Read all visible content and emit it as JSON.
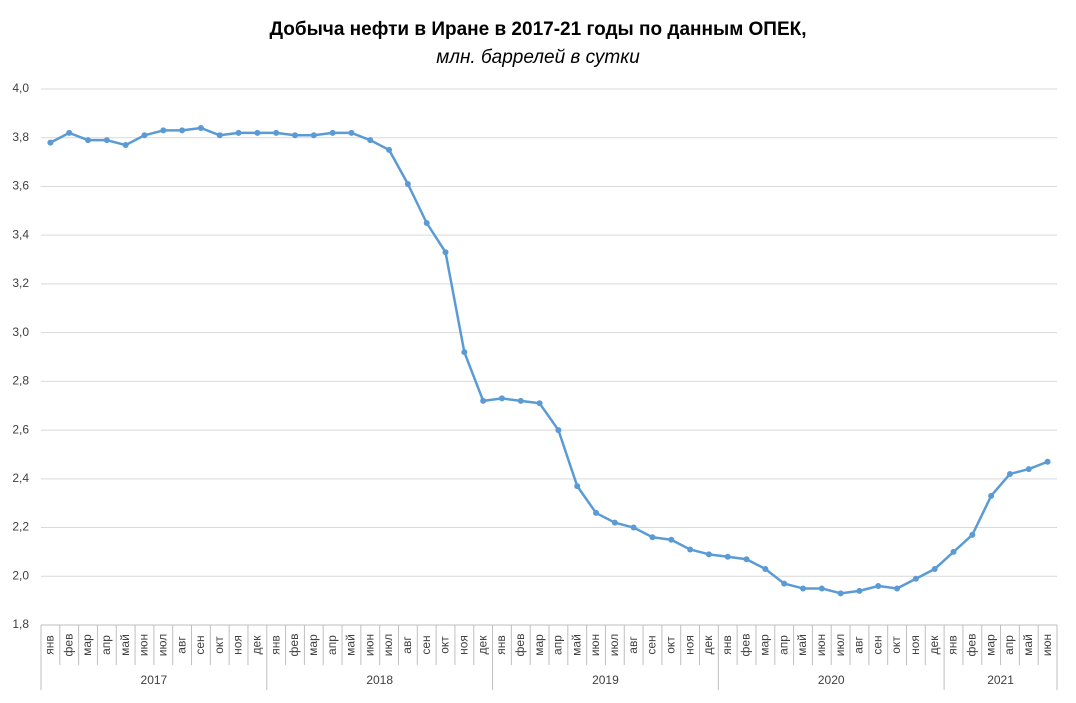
{
  "chart_data": {
    "type": "line",
    "title": "Добыча нефти в Иране в 2017-21 годы по данным ОПЕК,",
    "subtitle": "млн. баррелей в сутки",
    "categories": [
      "янв",
      "фев",
      "мар",
      "апр",
      "май",
      "июн",
      "июл",
      "авг",
      "сен",
      "окт",
      "ноя",
      "дек",
      "янв",
      "фев",
      "мар",
      "апр",
      "май",
      "июн",
      "июл",
      "авг",
      "сен",
      "окт",
      "ноя",
      "дек",
      "янв",
      "фев",
      "мар",
      "апр",
      "май",
      "июн",
      "июл",
      "авг",
      "сен",
      "окт",
      "ноя",
      "дек",
      "янв",
      "фев",
      "мар",
      "апр",
      "май",
      "июн",
      "июл",
      "авг",
      "сен",
      "окт",
      "ноя",
      "дек",
      "янв",
      "фев",
      "мар",
      "апр",
      "май",
      "июн"
    ],
    "x_groups": [
      {
        "label": "2017",
        "size": 12
      },
      {
        "label": "2018",
        "size": 12
      },
      {
        "label": "2019",
        "size": 12
      },
      {
        "label": "2020",
        "size": 12
      },
      {
        "label": "2021",
        "size": 6
      }
    ],
    "series": [
      {
        "color": "#5b9bd5",
        "values": [
          3.78,
          3.82,
          3.79,
          3.79,
          3.77,
          3.81,
          3.83,
          3.83,
          3.84,
          3.81,
          3.82,
          3.82,
          3.82,
          3.81,
          3.81,
          3.82,
          3.82,
          3.79,
          3.75,
          3.61,
          3.45,
          3.33,
          2.92,
          2.72,
          2.73,
          2.72,
          2.71,
          2.6,
          2.37,
          2.26,
          2.22,
          2.2,
          2.16,
          2.15,
          2.11,
          2.09,
          2.08,
          2.07,
          2.03,
          1.97,
          1.95,
          1.95,
          1.93,
          1.94,
          1.96,
          1.95,
          1.99,
          2.03,
          2.1,
          2.17,
          2.33,
          2.42,
          2.44,
          2.47
        ]
      }
    ],
    "ylim": [
      1.8,
      4.0
    ],
    "yticks": [
      {
        "value": 1.8,
        "label": "1,8"
      },
      {
        "value": 2.0,
        "label": "2,0"
      },
      {
        "value": 2.2,
        "label": "2,2"
      },
      {
        "value": 2.4,
        "label": "2,4"
      },
      {
        "value": 2.6,
        "label": "2,6"
      },
      {
        "value": 2.8,
        "label": "2,8"
      },
      {
        "value": 3.0,
        "label": "3,0"
      },
      {
        "value": 3.2,
        "label": "3,2"
      },
      {
        "value": 3.4,
        "label": "3,4"
      },
      {
        "value": 3.6,
        "label": "3,6"
      },
      {
        "value": 3.8,
        "label": "3,8"
      },
      {
        "value": 4.0,
        "label": "4,0"
      }
    ],
    "grid": true
  }
}
